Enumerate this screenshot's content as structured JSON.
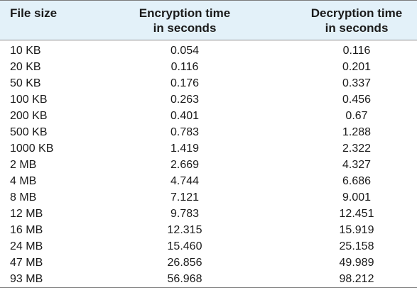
{
  "table": {
    "headers": [
      "File size",
      "Encryption time in seconds",
      "Decryption time in seconds"
    ],
    "header_lines": {
      "col0": [
        "File size"
      ],
      "col1": [
        "Encryption time",
        "in seconds"
      ],
      "col2": [
        "Decryption time",
        "in seconds"
      ]
    },
    "rows": [
      [
        "10 KB",
        "0.054",
        "0.116"
      ],
      [
        "20 KB",
        "0.116",
        "0.201"
      ],
      [
        "50 KB",
        "0.176",
        "0.337"
      ],
      [
        "100 KB",
        "0.263",
        "0.456"
      ],
      [
        "200 KB",
        "0.401",
        "0.67"
      ],
      [
        "500 KB",
        "0.783",
        "1.288"
      ],
      [
        "1000 KB",
        "1.419",
        "2.322"
      ],
      [
        "2 MB",
        "2.669",
        "4.327"
      ],
      [
        "4 MB",
        "4.744",
        "6.686"
      ],
      [
        "8 MB",
        "7.121",
        "9.001"
      ],
      [
        "12 MB",
        "9.783",
        "12.451"
      ],
      [
        "16 MB",
        "12.315",
        "15.919"
      ],
      [
        "24 MB",
        "15.460",
        "25.158"
      ],
      [
        "47 MB",
        "26.856",
        "49.989"
      ],
      [
        "93 MB",
        "56.968",
        "98.212"
      ]
    ]
  },
  "colors": {
    "header_background": "#e3f1f9",
    "rule": "#8a8a8a",
    "text": "#1a1a1a"
  }
}
